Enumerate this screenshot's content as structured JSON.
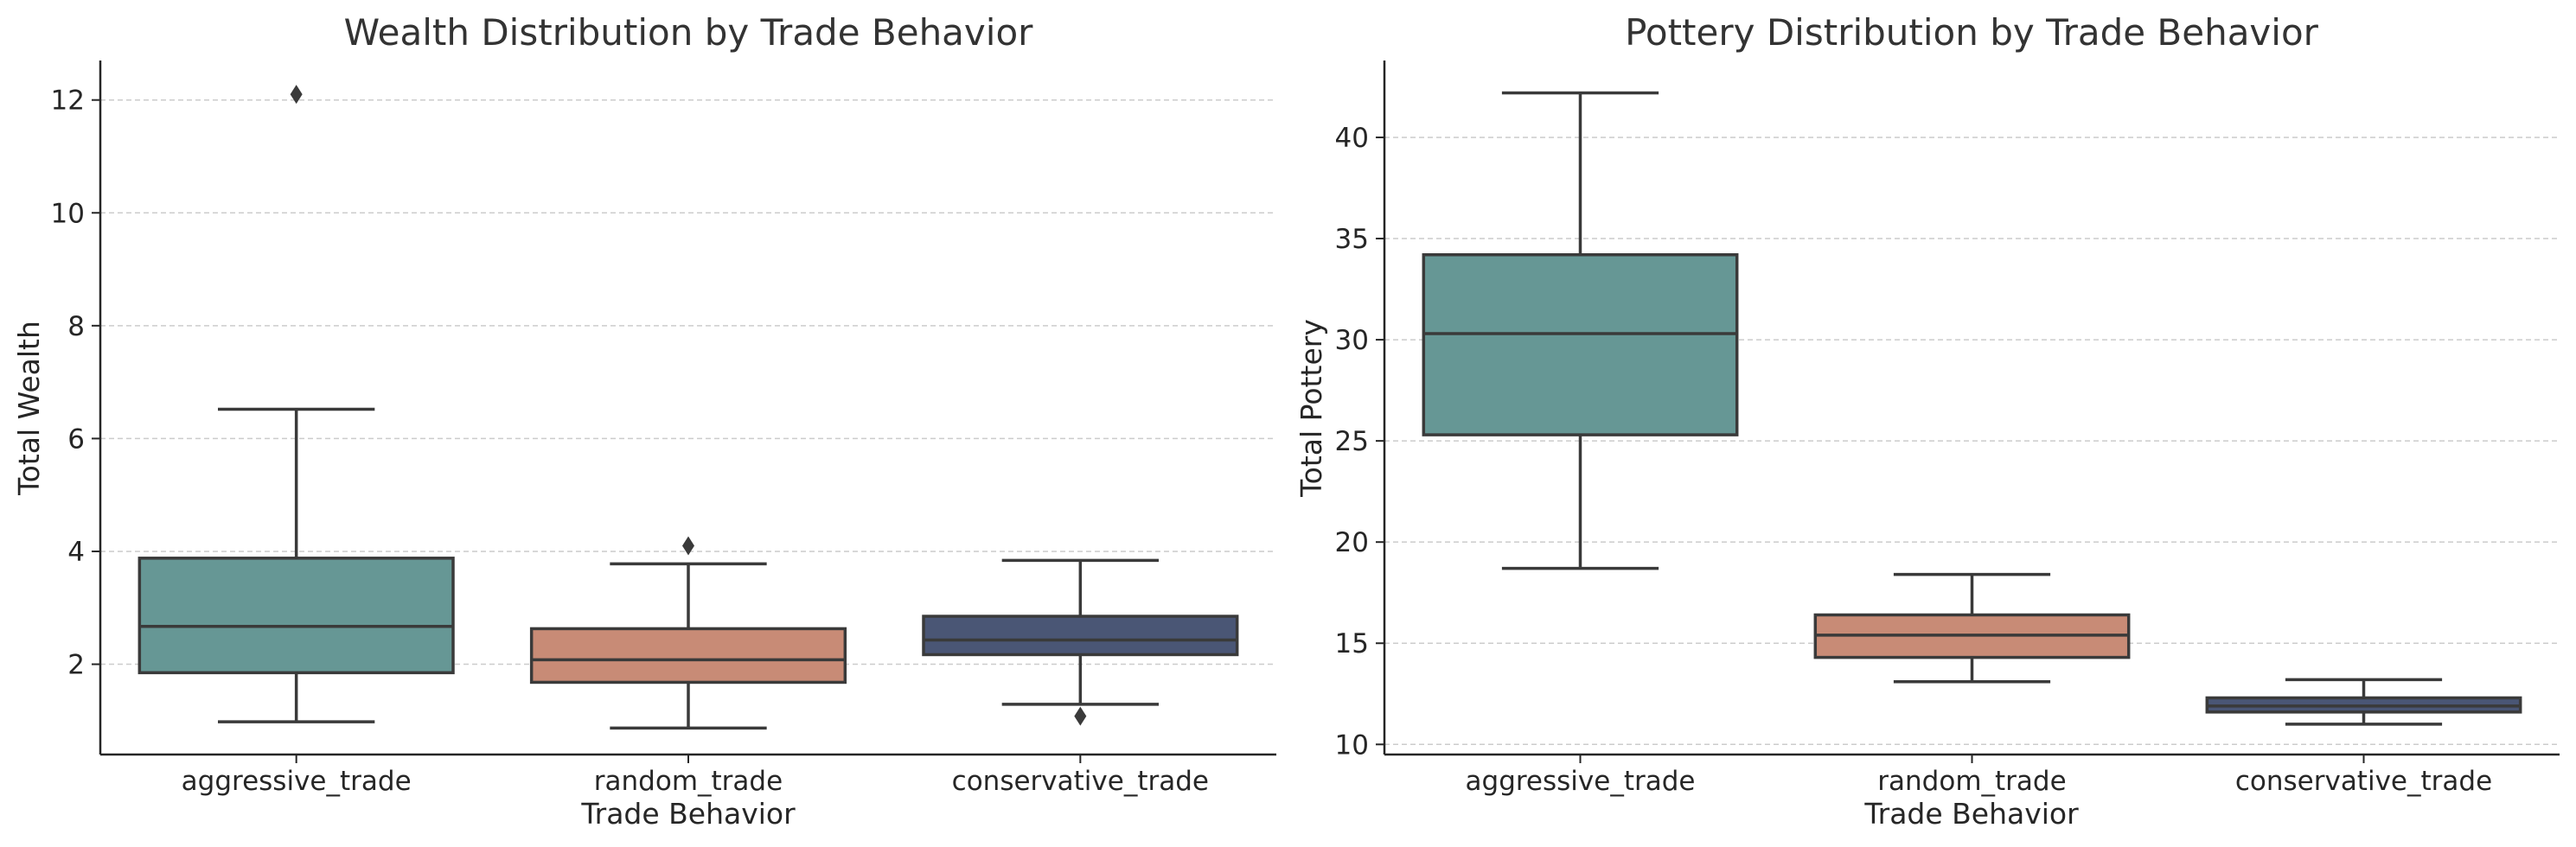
{
  "chart_data": [
    {
      "type": "box",
      "title": "Wealth Distribution by Trade Behavior",
      "xlabel": "Trade Behavior",
      "ylabel": "Total Wealth",
      "categories": [
        "aggressive_trade",
        "random_trade",
        "conservative_trade"
      ],
      "ylim": [
        0.4,
        12.7
      ],
      "yticks": [
        2,
        4,
        6,
        8,
        10,
        12
      ],
      "grid": "horizontal dashed",
      "boxes": [
        {
          "category": "aggressive_trade",
          "whisker_low": 0.98,
          "q1": 1.85,
          "median": 2.67,
          "q3": 3.88,
          "whisker_high": 6.52,
          "outliers": [
            12.1
          ]
        },
        {
          "category": "random_trade",
          "whisker_low": 0.87,
          "q1": 1.68,
          "median": 2.08,
          "q3": 2.63,
          "whisker_high": 3.78,
          "outliers": [
            4.1
          ]
        },
        {
          "category": "conservative_trade",
          "whisker_low": 1.29,
          "q1": 2.17,
          "median": 2.43,
          "q3": 2.85,
          "whisker_high": 3.84,
          "outliers": [
            1.08
          ]
        }
      ]
    },
    {
      "type": "box",
      "title": "Pottery Distribution by Trade Behavior",
      "xlabel": "Trade Behavior",
      "ylabel": "Total Pottery",
      "categories": [
        "aggressive_trade",
        "random_trade",
        "conservative_trade"
      ],
      "ylim": [
        9.5,
        43.8
      ],
      "yticks": [
        10,
        15,
        20,
        25,
        30,
        35,
        40
      ],
      "grid": "horizontal dashed",
      "boxes": [
        {
          "category": "aggressive_trade",
          "whisker_low": 18.7,
          "q1": 25.3,
          "median": 30.3,
          "q3": 34.2,
          "whisker_high": 42.2,
          "outliers": []
        },
        {
          "category": "random_trade",
          "whisker_low": 13.1,
          "q1": 14.3,
          "median": 15.4,
          "q3": 16.4,
          "whisker_high": 18.4,
          "outliers": []
        },
        {
          "category": "conservative_trade",
          "whisker_low": 11.0,
          "q1": 11.6,
          "median": 11.9,
          "q3": 12.3,
          "whisker_high": 13.2,
          "outliers": []
        }
      ]
    }
  ],
  "colors": {
    "aggressive_trade": "#669795",
    "random_trade": "#c88b76",
    "conservative_trade": "#4a5675",
    "outline": "#3a3a3a",
    "grid": "#cccccc",
    "axis": "#262626"
  }
}
